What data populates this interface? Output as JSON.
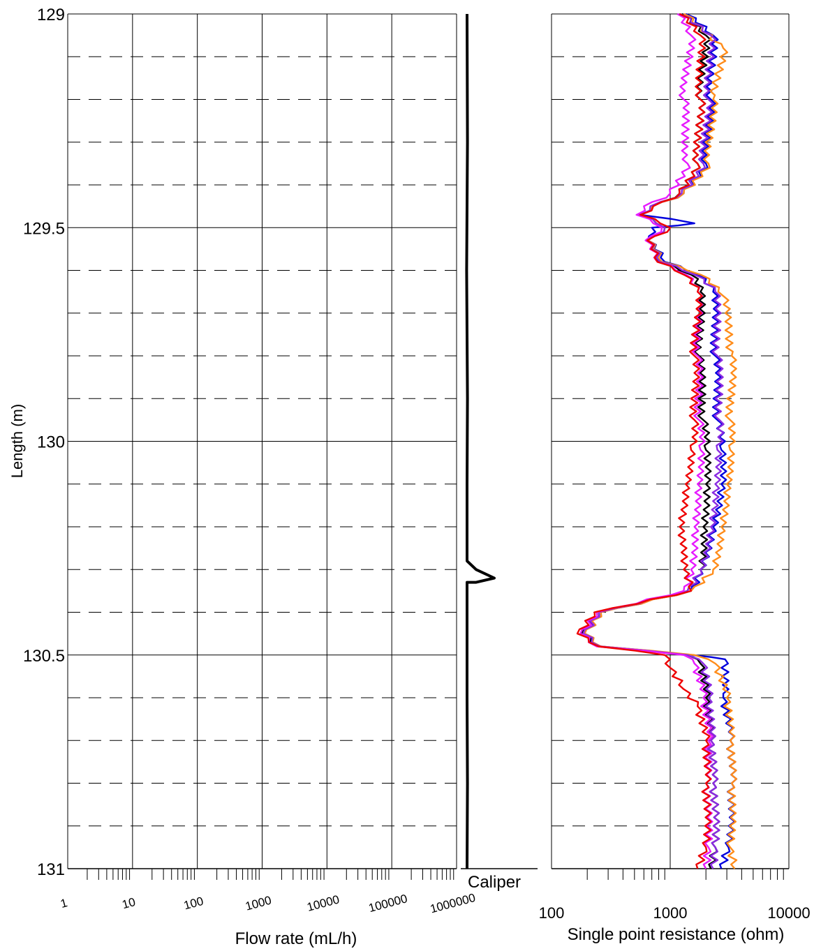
{
  "chart_data": [
    {
      "type": "line",
      "panel": "flow-rate",
      "xlabel": "Flow rate (mL/h)",
      "ylabel": "Length (m)",
      "x_scale": "log",
      "xlim": [
        1,
        1000000
      ],
      "ylim": [
        131,
        129
      ],
      "x_ticks": [
        "1",
        "10",
        "100",
        "1000",
        "10000",
        "100000",
        "1000000"
      ],
      "y_ticks": [
        "129",
        "129.5",
        "130",
        "130.5",
        "131"
      ],
      "grid": true,
      "series": []
    },
    {
      "type": "line",
      "panel": "caliper",
      "xlabel": "Caliper",
      "ylim": [
        131,
        129
      ],
      "series": [
        {
          "color": "#000000",
          "points": [
            [
              0,
              129.0
            ],
            [
              0.5,
              129.3
            ],
            [
              -0.5,
              129.6
            ],
            [
              0.5,
              129.9
            ],
            [
              0,
              130.1
            ],
            [
              0,
              130.28
            ],
            [
              10,
              130.3
            ],
            [
              30,
              130.32
            ],
            [
              10,
              130.33
            ],
            [
              0,
              130.33
            ],
            [
              0,
              130.6
            ],
            [
              0.5,
              130.8
            ],
            [
              0,
              131.0
            ]
          ]
        }
      ]
    },
    {
      "type": "line",
      "panel": "resistance",
      "xlabel": "Single point resistance (ohm)",
      "x_scale": "log",
      "xlim": [
        100,
        10000
      ],
      "ylim": [
        131,
        129
      ],
      "x_ticks": [
        "100",
        "1000",
        "10000"
      ],
      "grid": true,
      "series": [
        {
          "color": "#000000",
          "points": [
            [
              1250,
              129.0
            ],
            [
              2000,
              129.05
            ],
            [
              1800,
              129.2
            ],
            [
              1700,
              129.35
            ],
            [
              1200,
              129.42
            ],
            [
              700,
              129.45
            ],
            [
              550,
              129.47
            ],
            [
              900,
              129.5
            ],
            [
              650,
              129.53
            ],
            [
              800,
              129.58
            ],
            [
              1500,
              129.61
            ],
            [
              1800,
              129.65
            ],
            [
              1750,
              129.8
            ],
            [
              1900,
              129.95
            ],
            [
              2000,
              130.02
            ],
            [
              2000,
              130.1
            ],
            [
              1900,
              130.2
            ],
            [
              1800,
              130.3
            ],
            [
              1400,
              130.35
            ],
            [
              250,
              130.4
            ],
            [
              180,
              130.45
            ],
            [
              250,
              130.48
            ],
            [
              1400,
              130.5
            ],
            [
              1800,
              130.52
            ],
            [
              2000,
              130.6
            ],
            [
              2200,
              130.7
            ],
            [
              2300,
              130.8
            ],
            [
              2400,
              130.95
            ],
            [
              2200,
              131.0
            ]
          ]
        },
        {
          "color": "#0000dd",
          "points": [
            [
              1350,
              129.0
            ],
            [
              2300,
              129.05
            ],
            [
              2200,
              129.2
            ],
            [
              2000,
              129.35
            ],
            [
              1300,
              129.42
            ],
            [
              700,
              129.45
            ],
            [
              560,
              129.47
            ],
            [
              1600,
              129.49
            ],
            [
              700,
              129.5
            ],
            [
              650,
              129.53
            ],
            [
              900,
              129.58
            ],
            [
              1700,
              129.61
            ],
            [
              2300,
              129.65
            ],
            [
              2400,
              129.8
            ],
            [
              2500,
              129.95
            ],
            [
              2700,
              130.02
            ],
            [
              2700,
              130.1
            ],
            [
              2300,
              130.2
            ],
            [
              1800,
              130.3
            ],
            [
              1500,
              130.35
            ],
            [
              260,
              130.4
            ],
            [
              190,
              130.45
            ],
            [
              260,
              130.48
            ],
            [
              1500,
              130.5
            ],
            [
              2900,
              130.51
            ],
            [
              2800,
              130.6
            ],
            [
              3200,
              130.7
            ],
            [
              3300,
              130.8
            ],
            [
              3100,
              130.95
            ],
            [
              2700,
              131.0
            ]
          ]
        },
        {
          "color": "#ff8c1a",
          "points": [
            [
              1300,
              129.0
            ],
            [
              2800,
              129.08
            ],
            [
              2300,
              129.2
            ],
            [
              2100,
              129.35
            ],
            [
              1300,
              129.42
            ],
            [
              700,
              129.45
            ],
            [
              560,
              129.47
            ],
            [
              900,
              129.5
            ],
            [
              650,
              129.53
            ],
            [
              850,
              129.58
            ],
            [
              1800,
              129.61
            ],
            [
              2800,
              129.66
            ],
            [
              3300,
              129.8
            ],
            [
              3200,
              129.95
            ],
            [
              3200,
              130.02
            ],
            [
              3000,
              130.1
            ],
            [
              2700,
              130.2
            ],
            [
              2300,
              130.3
            ],
            [
              1500,
              130.35
            ],
            [
              260,
              130.4
            ],
            [
              190,
              130.45
            ],
            [
              260,
              130.48
            ],
            [
              1600,
              130.5
            ],
            [
              2400,
              130.52
            ],
            [
              3000,
              130.6
            ],
            [
              3200,
              130.7
            ],
            [
              3300,
              130.8
            ],
            [
              3200,
              130.95
            ],
            [
              3500,
              131.0
            ]
          ]
        },
        {
          "color": "#8a2be2",
          "points": [
            [
              1200,
              129.0
            ],
            [
              2200,
              129.05
            ],
            [
              2100,
              129.2
            ],
            [
              1900,
              129.35
            ],
            [
              1250,
              129.42
            ],
            [
              680,
              129.45
            ],
            [
              550,
              129.47
            ],
            [
              900,
              129.5
            ],
            [
              640,
              129.53
            ],
            [
              820,
              129.58
            ],
            [
              1600,
              129.61
            ],
            [
              2400,
              129.65
            ],
            [
              2500,
              129.8
            ],
            [
              2600,
              129.95
            ],
            [
              2500,
              130.02
            ],
            [
              2400,
              130.1
            ],
            [
              2200,
              130.2
            ],
            [
              1800,
              130.3
            ],
            [
              1400,
              130.35
            ],
            [
              250,
              130.4
            ],
            [
              185,
              130.45
            ],
            [
              255,
              130.48
            ],
            [
              1400,
              130.5
            ],
            [
              1900,
              130.52
            ],
            [
              2100,
              130.6
            ],
            [
              2200,
              130.7
            ],
            [
              2300,
              130.8
            ],
            [
              2400,
              130.95
            ],
            [
              2300,
              131.0
            ]
          ]
        },
        {
          "color": "#e61aff",
          "points": [
            [
              1150,
              129.0
            ],
            [
              1500,
              129.05
            ],
            [
              1300,
              129.2
            ],
            [
              1400,
              129.35
            ],
            [
              1000,
              129.42
            ],
            [
              600,
              129.45
            ],
            [
              520,
              129.47
            ],
            [
              850,
              129.5
            ],
            [
              620,
              129.53
            ],
            [
              780,
              129.58
            ],
            [
              1350,
              129.61
            ],
            [
              1700,
              129.65
            ],
            [
              1700,
              129.8
            ],
            [
              1750,
              129.95
            ],
            [
              1800,
              130.02
            ],
            [
              1700,
              130.1
            ],
            [
              1600,
              130.2
            ],
            [
              1500,
              130.3
            ],
            [
              1300,
              130.35
            ],
            [
              240,
              130.4
            ],
            [
              175,
              130.45
            ],
            [
              240,
              130.48
            ],
            [
              1300,
              130.5
            ],
            [
              1600,
              130.52
            ],
            [
              1900,
              130.6
            ],
            [
              2100,
              130.7
            ],
            [
              2000,
              130.8
            ],
            [
              2100,
              130.95
            ],
            [
              2000,
              131.0
            ]
          ]
        },
        {
          "color": "#ee0000",
          "points": [
            [
              1200,
              129.0
            ],
            [
              1800,
              129.05
            ],
            [
              1800,
              129.2
            ],
            [
              1700,
              129.35
            ],
            [
              1200,
              129.42
            ],
            [
              720,
              129.45
            ],
            [
              560,
              129.47
            ],
            [
              1000,
              129.5
            ],
            [
              640,
              129.53
            ],
            [
              780,
              129.58
            ],
            [
              1300,
              129.61
            ],
            [
              1700,
              129.65
            ],
            [
              1600,
              129.8
            ],
            [
              1600,
              129.95
            ],
            [
              1500,
              130.02
            ],
            [
              1350,
              130.1
            ],
            [
              1200,
              130.2
            ],
            [
              1300,
              130.3
            ],
            [
              1500,
              130.35
            ],
            [
              230,
              130.4
            ],
            [
              165,
              130.45
            ],
            [
              250,
              130.48
            ],
            [
              900,
              130.5
            ],
            [
              1000,
              130.53
            ],
            [
              1300,
              130.58
            ],
            [
              1700,
              130.62
            ],
            [
              2000,
              130.7
            ],
            [
              2000,
              130.8
            ],
            [
              2000,
              130.95
            ],
            [
              1700,
              131.0
            ]
          ]
        }
      ]
    }
  ]
}
